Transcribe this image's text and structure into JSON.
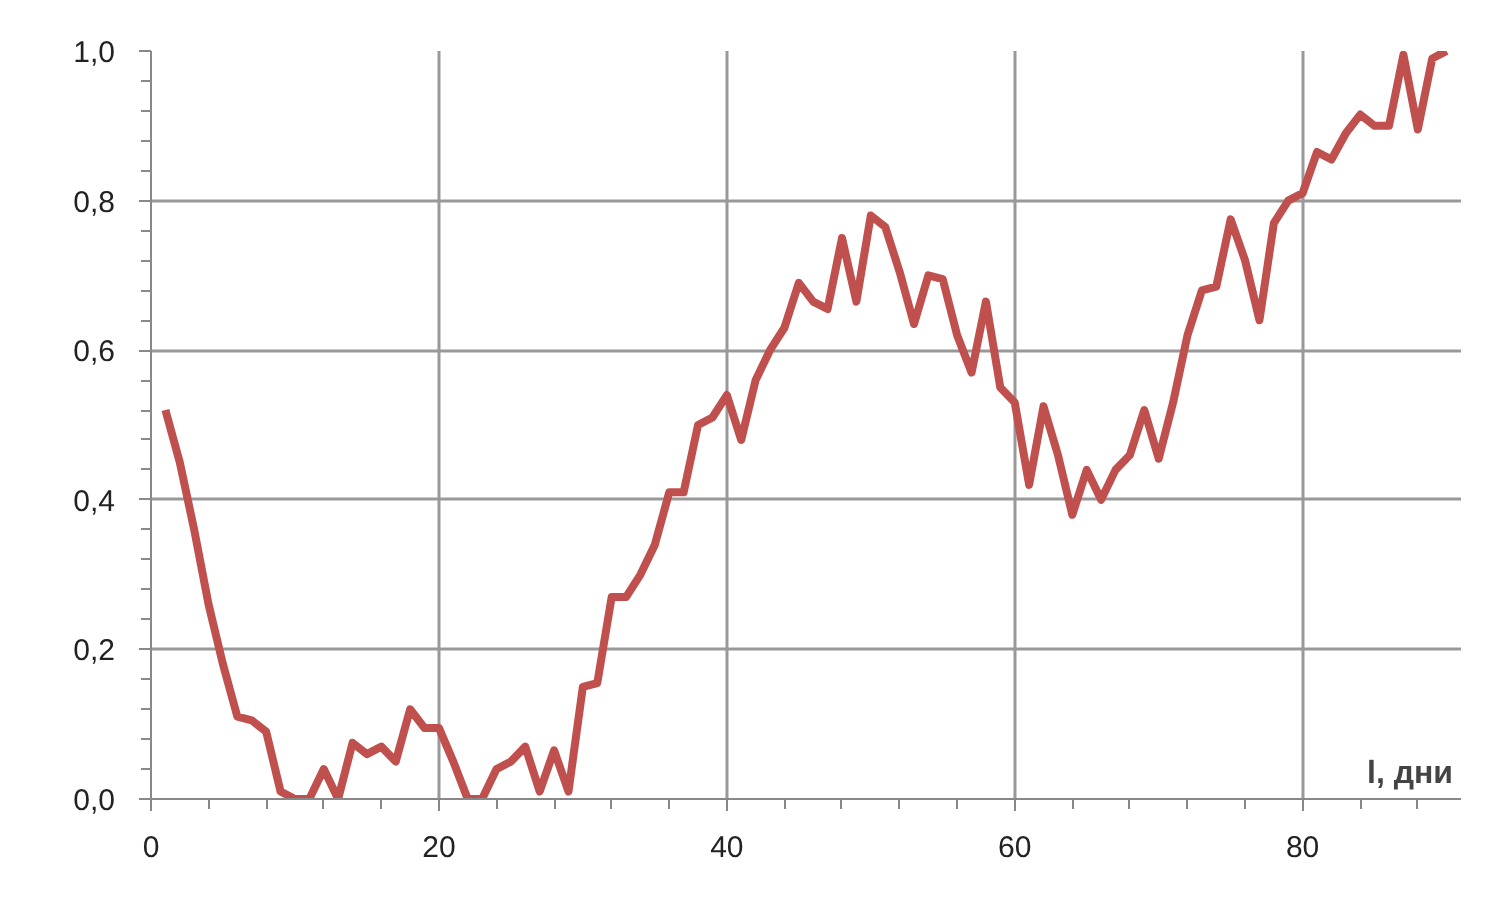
{
  "chart_data": {
    "type": "line",
    "xlabel": "l, дни",
    "x": [
      1,
      2,
      3,
      4,
      5,
      6,
      7,
      8,
      9,
      10,
      11,
      12,
      13,
      14,
      15,
      16,
      17,
      18,
      19,
      20,
      21,
      22,
      23,
      24,
      25,
      26,
      27,
      28,
      29,
      30,
      31,
      32,
      33,
      34,
      35,
      36,
      37,
      38,
      39,
      40,
      41,
      42,
      43,
      44,
      45,
      46,
      47,
      48,
      49,
      50,
      51,
      52,
      53,
      54,
      55,
      56,
      57,
      58,
      59,
      60,
      61,
      62,
      63,
      64,
      65,
      66,
      67,
      68,
      69,
      70,
      71,
      72,
      73,
      74,
      75,
      76,
      77,
      78,
      79,
      80,
      81,
      82,
      83,
      84,
      85,
      86,
      87,
      88,
      89,
      90
    ],
    "series": [
      {
        "color": "#c0504d",
        "values": [
          0.52,
          0.45,
          0.36,
          0.26,
          0.18,
          0.11,
          0.105,
          0.09,
          0.01,
          0.0,
          0.0,
          0.04,
          0.0,
          0.075,
          0.06,
          0.07,
          0.05,
          0.12,
          0.095,
          0.095,
          0.05,
          0.0,
          0.0,
          0.04,
          0.05,
          0.07,
          0.01,
          0.065,
          0.01,
          0.15,
          0.155,
          0.27,
          0.27,
          0.3,
          0.34,
          0.41,
          0.41,
          0.5,
          0.51,
          0.54,
          0.48,
          0.56,
          0.6,
          0.63,
          0.69,
          0.665,
          0.655,
          0.75,
          0.665,
          0.78,
          0.765,
          0.705,
          0.635,
          0.7,
          0.695,
          0.62,
          0.57,
          0.665,
          0.55,
          0.53,
          0.42,
          0.525,
          0.46,
          0.38,
          0.44,
          0.4,
          0.44,
          0.46,
          0.52,
          0.455,
          0.53,
          0.62,
          0.68,
          0.685,
          0.775,
          0.72,
          0.64,
          0.77,
          0.8,
          0.81,
          0.865,
          0.855,
          0.89,
          0.915,
          0.9,
          0.9,
          0.995,
          0.895,
          0.99,
          1.0
        ]
      }
    ],
    "xlim": [
      0,
      91
    ],
    "ylim": [
      0,
      1
    ],
    "xticks": [
      0,
      20,
      40,
      60,
      80
    ],
    "yticks": [
      {
        "value": 0,
        "label": "0,0"
      },
      {
        "value": 0.2,
        "label": "0,2"
      },
      {
        "value": 0.4,
        "label": "0,4"
      },
      {
        "value": 0.6,
        "label": "0,6"
      },
      {
        "value": 0.8,
        "label": "0,8"
      },
      {
        "value": 1.0,
        "label": "1,0"
      }
    ],
    "grid": true,
    "marker": "none",
    "line_style": "solid"
  }
}
